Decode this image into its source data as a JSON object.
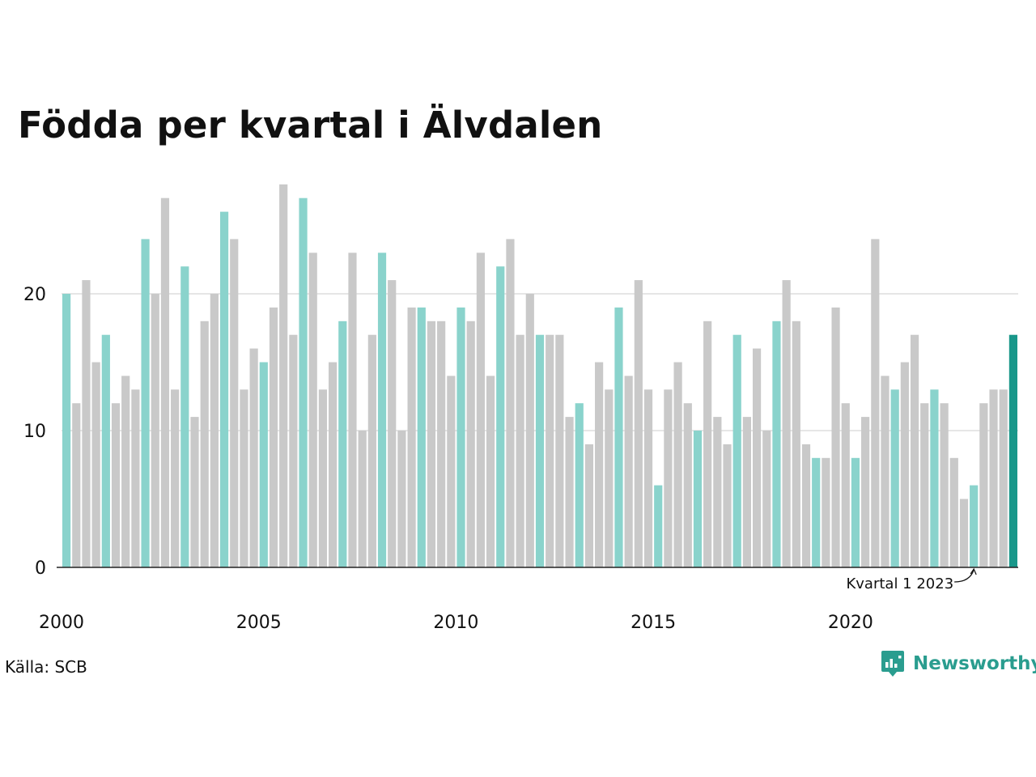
{
  "chart_data": {
    "type": "bar",
    "title": "Födda per kvartal i Älvdalen",
    "xlabel": "",
    "ylabel": "",
    "ylim": [
      0,
      29
    ],
    "yticks": [
      0,
      10,
      20
    ],
    "xtick_labels": [
      "2000",
      "2005",
      "2010",
      "2015",
      "2020"
    ],
    "grid": true,
    "start_year": 2000,
    "categories": [
      "2000 K1",
      "2000 K2",
      "2000 K3",
      "2000 K4",
      "2001 K1",
      "2001 K2",
      "2001 K3",
      "2001 K4",
      "2002 K1",
      "2002 K2",
      "2002 K3",
      "2002 K4",
      "2003 K1",
      "2003 K2",
      "2003 K3",
      "2003 K4",
      "2004 K1",
      "2004 K2",
      "2004 K3",
      "2004 K4",
      "2005 K1",
      "2005 K2",
      "2005 K3",
      "2005 K4",
      "2006 K1",
      "2006 K2",
      "2006 K3",
      "2006 K4",
      "2007 K1",
      "2007 K2",
      "2007 K3",
      "2007 K4",
      "2008 K1",
      "2008 K2",
      "2008 K3",
      "2008 K4",
      "2009 K1",
      "2009 K2",
      "2009 K3",
      "2009 K4",
      "2010 K1",
      "2010 K2",
      "2010 K3",
      "2010 K4",
      "2011 K1",
      "2011 K2",
      "2011 K3",
      "2011 K4",
      "2012 K1",
      "2012 K2",
      "2012 K3",
      "2012 K4",
      "2013 K1",
      "2013 K2",
      "2013 K3",
      "2013 K4",
      "2014 K1",
      "2014 K2",
      "2014 K3",
      "2014 K4",
      "2015 K1",
      "2015 K2",
      "2015 K3",
      "2015 K4",
      "2016 K1",
      "2016 K2",
      "2016 K3",
      "2016 K4",
      "2017 K1",
      "2017 K2",
      "2017 K3",
      "2017 K4",
      "2018 K1",
      "2018 K2",
      "2018 K3",
      "2018 K4",
      "2019 K1",
      "2019 K2",
      "2019 K3",
      "2019 K4",
      "2020 K1",
      "2020 K2",
      "2020 K3",
      "2020 K4",
      "2021 K1",
      "2021 K2",
      "2021 K3",
      "2021 K4",
      "2022 K1",
      "2022 K2",
      "2022 K3",
      "2022 K4",
      "2023 K1",
      "2023 K2",
      "2023 K3",
      "2023 K4",
      "2024 K1"
    ],
    "values": [
      20,
      12,
      21,
      15,
      17,
      12,
      14,
      13,
      24,
      20,
      27,
      13,
      22,
      11,
      18,
      20,
      26,
      24,
      13,
      16,
      15,
      19,
      28,
      17,
      27,
      23,
      13,
      15,
      18,
      23,
      10,
      17,
      23,
      21,
      10,
      19,
      19,
      18,
      18,
      14,
      19,
      18,
      23,
      14,
      22,
      24,
      17,
      20,
      17,
      17,
      17,
      11,
      12,
      9,
      15,
      13,
      19,
      14,
      21,
      13,
      6,
      13,
      15,
      12,
      10,
      18,
      11,
      9,
      17,
      11,
      16,
      10,
      18,
      21,
      18,
      9,
      8,
      8,
      19,
      12,
      8,
      11,
      24,
      14,
      13,
      15,
      17,
      12,
      13,
      12,
      8,
      5,
      6,
      12,
      13,
      13,
      17
    ],
    "colors": {
      "q1": "#8ad3cc",
      "other": "#c9c9c9",
      "latest": "#19978a",
      "grid": "#dddddd",
      "axis": "#222222"
    },
    "annotation": {
      "text": "Kvartal 1 2023",
      "index": 92
    }
  },
  "source_label": "Källa: SCB",
  "brand": {
    "name": "Newsworthy",
    "icon": "chart-bubble-icon",
    "color": "#2a9d8f"
  }
}
